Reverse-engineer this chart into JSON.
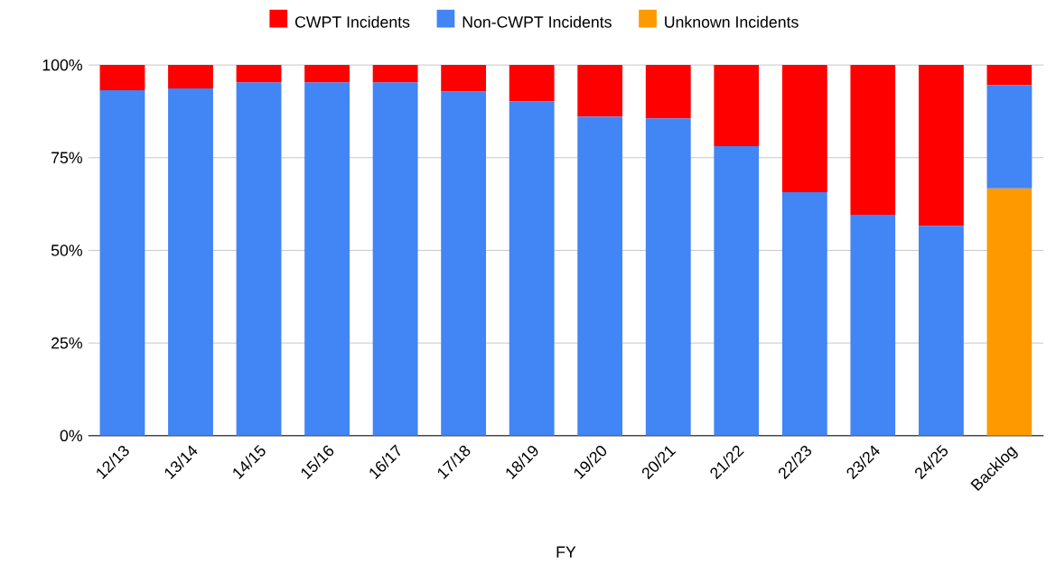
{
  "chart_data": {
    "type": "bar",
    "stacked": true,
    "xlabel": "FY",
    "categories": [
      "12/13",
      "13/14",
      "14/15",
      "15/16",
      "16/17",
      "17/18",
      "18/19",
      "19/20",
      "20/21",
      "21/22",
      "22/23",
      "23/24",
      "24/25",
      "Backlog"
    ],
    "series": [
      {
        "name": "Unknown Incidents",
        "color": "#ff9900",
        "values": [
          null,
          null,
          null,
          null,
          null,
          null,
          null,
          null,
          null,
          null,
          null,
          null,
          null,
          66.7
        ]
      },
      {
        "name": "Non-CWPT Incidents",
        "color": "#4285f4",
        "values": [
          93.2,
          93.7,
          95.3,
          95.3,
          95.3,
          92.8,
          90.2,
          86.1,
          85.6,
          78.1,
          65.7,
          59.6,
          56.6,
          27.9
        ]
      },
      {
        "name": "CWPT Incidents",
        "color": "#ff0000",
        "values": [
          6.8,
          6.3,
          4.7,
          4.7,
          4.7,
          7.2,
          9.8,
          13.9,
          14.4,
          21.9,
          34.3,
          40.4,
          43.4,
          5.4
        ]
      }
    ],
    "ylim": [
      0,
      100
    ],
    "yticks": [
      {
        "value": 0,
        "label": "0%"
      },
      {
        "value": 25,
        "label": "25%"
      },
      {
        "value": 50,
        "label": "50%"
      },
      {
        "value": 75,
        "label": "75%"
      },
      {
        "value": 100,
        "label": "100%"
      }
    ],
    "grid": "y",
    "legend": "top"
  }
}
